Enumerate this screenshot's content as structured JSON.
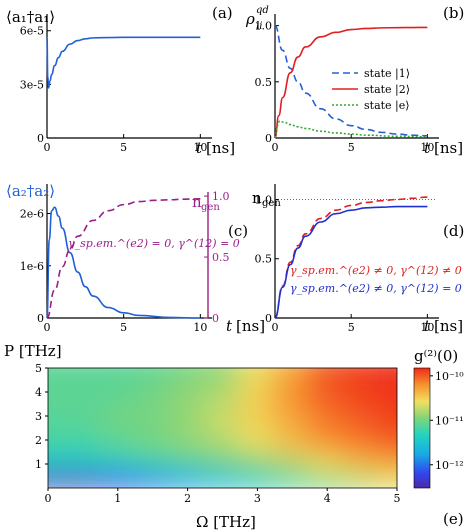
{
  "chart_data": [
    {
      "panel": "(a)",
      "type": "line",
      "ylabel": "⟨a₁†a₁⟩",
      "xlabel": "t [ns]",
      "xlim": [
        0,
        10.5
      ],
      "ylim": [
        0,
        6.6e-05
      ],
      "xticks": [
        0,
        5,
        10
      ],
      "yticks": [
        0,
        3e-05,
        6e-05
      ],
      "ytick_labels": [
        "0",
        "3e-5",
        "6e-5"
      ],
      "series": [
        {
          "color": "#2060d8",
          "style": "solid",
          "x": [
            0,
            0.05,
            0.1,
            0.2,
            0.3,
            0.5,
            0.75,
            1,
            1.5,
            2,
            2.5,
            3,
            4,
            5,
            6,
            8,
            10
          ],
          "y": [
            5.6e-05,
            3.4e-05,
            2.8e-05,
            3.2e-05,
            3.55e-05,
            4.05e-05,
            4.5e-05,
            4.85e-05,
            5.25e-05,
            5.45e-05,
            5.55e-05,
            5.6e-05,
            5.62e-05,
            5.63e-05,
            5.63e-05,
            5.63e-05,
            5.63e-05
          ]
        }
      ]
    },
    {
      "panel": "(b)",
      "type": "line",
      "ylabel": "ρ_ii^qd",
      "xlabel": "t [ns]",
      "xlim": [
        0,
        10.5
      ],
      "ylim": [
        0,
        1.05
      ],
      "xticks": [
        0,
        5,
        10
      ],
      "yticks": [
        0,
        0.5,
        1.0
      ],
      "ytick_labels": [
        "0",
        "0.5",
        "1.0"
      ],
      "legend_position": "center-right",
      "series": [
        {
          "name": "state |1⟩",
          "color": "#2060d8",
          "style": "dashed",
          "x": [
            0,
            0.5,
            1,
            1.5,
            2,
            3,
            4,
            5,
            6,
            7,
            8,
            9,
            10
          ],
          "y": [
            1.0,
            0.78,
            0.62,
            0.5,
            0.4,
            0.26,
            0.17,
            0.11,
            0.075,
            0.05,
            0.035,
            0.025,
            0.02
          ]
        },
        {
          "name": "state |2⟩",
          "color": "#e02020",
          "style": "solid",
          "x": [
            0,
            0.25,
            0.5,
            1,
            1.5,
            2,
            3,
            4,
            5,
            6,
            7,
            8,
            9,
            10
          ],
          "y": [
            0,
            0.2,
            0.36,
            0.58,
            0.72,
            0.81,
            0.9,
            0.94,
            0.965,
            0.975,
            0.98,
            0.982,
            0.983,
            0.984
          ]
        },
        {
          "name": "state |e⟩",
          "color": "#33aa33",
          "style": "dotted",
          "x": [
            0,
            0.15,
            0.3,
            0.6,
            1,
            1.5,
            2,
            3,
            4,
            5,
            6,
            8,
            10
          ],
          "y": [
            0,
            0.11,
            0.15,
            0.14,
            0.12,
            0.1,
            0.085,
            0.06,
            0.045,
            0.035,
            0.025,
            0.015,
            0.01
          ]
        }
      ]
    },
    {
      "panel": "(c)",
      "type": "line",
      "ylabel": "⟨a₂†a₂⟩",
      "ylabel_right": "n_gen",
      "xlabel": "t [ns]",
      "xlim": [
        0,
        10.5
      ],
      "ylim": [
        0,
        2.45e-06
      ],
      "ylim_right": [
        0,
        1.05
      ],
      "xticks": [
        0,
        5,
        10
      ],
      "yticks": [
        0,
        1e-06,
        2e-06
      ],
      "ytick_labels": [
        "0",
        "1e-6",
        "2e-6"
      ],
      "yticks_right": [
        0,
        0.5,
        1.0
      ],
      "ytick_labels_right": [
        "0",
        "0.5",
        "1.0"
      ],
      "annotation": "γ_sp.em.^(e2) = 0, γ^(12) = 0",
      "series": [
        {
          "axis": "left",
          "color": "#2060d8",
          "style": "solid",
          "x": [
            0,
            0.15,
            0.3,
            0.5,
            0.75,
            1,
            1.5,
            2,
            2.5,
            3,
            4,
            5,
            6,
            8,
            10
          ],
          "y": [
            0,
            1.5e-06,
            2.05e-06,
            2.12e-06,
            1.95e-06,
            1.72e-06,
            1.25e-06,
            8.8e-07,
            6e-07,
            4.2e-07,
            2e-07,
            1e-07,
            5e-08,
            1e-08,
            0
          ]
        },
        {
          "axis": "right",
          "color": "#9a1f8c",
          "style": "dashed",
          "x": [
            0,
            0.5,
            1,
            1.5,
            2,
            3,
            4,
            5,
            6,
            7,
            8,
            9,
            10
          ],
          "y": [
            0,
            0.23,
            0.42,
            0.56,
            0.67,
            0.8,
            0.88,
            0.93,
            0.955,
            0.965,
            0.97,
            0.975,
            0.978
          ]
        }
      ]
    },
    {
      "panel": "(d)",
      "type": "line",
      "ylabel": "n_gen",
      "xlabel": "t [ns]",
      "xlim": [
        0,
        10.5
      ],
      "ylim": [
        0,
        1.08
      ],
      "xticks": [
        0,
        5,
        10
      ],
      "yticks": [
        0,
        0.5,
        1.0
      ],
      "ytick_labels": [
        "0",
        "0.5",
        "1.0"
      ],
      "reference_line": 1.0,
      "series": [
        {
          "name": "γ_sp.em.^(e2) ≠ 0, γ^(12) ≠ 0",
          "color": "#e02020",
          "style": "dashed",
          "x": [
            0,
            0.5,
            1,
            1.5,
            2,
            3,
            4,
            5,
            6,
            7,
            8,
            9,
            10
          ],
          "y": [
            0,
            0.27,
            0.47,
            0.61,
            0.71,
            0.84,
            0.91,
            0.95,
            0.975,
            0.99,
            1.0,
            1.01,
            1.02
          ]
        },
        {
          "name": "γ_sp.em.^(e2) ≠ 0, γ^(12) = 0",
          "color": "#2030d0",
          "style": "solid",
          "x": [
            0,
            0.5,
            1,
            1.5,
            2,
            3,
            4,
            5,
            6,
            7,
            8,
            9,
            10
          ],
          "y": [
            0,
            0.26,
            0.45,
            0.59,
            0.69,
            0.81,
            0.88,
            0.91,
            0.93,
            0.935,
            0.94,
            0.94,
            0.94
          ]
        }
      ]
    },
    {
      "panel": "(e)",
      "type": "heatmap",
      "xlabel": "Ω [THz]",
      "ylabel": "P [THz]",
      "colorbar_label": "g⁽²⁾(0)",
      "colorbar_scale": "log",
      "colorbar_range": [
        3e-13,
        1.5e-10
      ],
      "colorbar_ticks": [
        "10⁻¹⁰",
        "10⁻¹¹",
        "10⁻¹²"
      ],
      "xlim": [
        0,
        5
      ],
      "ylim": [
        0,
        5
      ],
      "xticks": [
        0,
        1,
        2,
        3,
        4,
        5
      ],
      "yticks": [
        1,
        2,
        3,
        4,
        5
      ],
      "y_grid": [
        0.4,
        1,
        2,
        3,
        4,
        5
      ],
      "x_grid": [
        0,
        0.5,
        1,
        1.5,
        2,
        2.5,
        3,
        3.5,
        4,
        4.5,
        5
      ],
      "z_log10": [
        [
          -12.4,
          -12.4,
          -12.2,
          -12.0,
          -11.8,
          -11.6,
          -11.4,
          -11.2,
          -11.0,
          -10.8,
          -10.6
        ],
        [
          -11.5,
          -11.5,
          -11.4,
          -11.3,
          -11.2,
          -11.1,
          -11.0,
          -10.8,
          -10.6,
          -10.4,
          -10.3
        ],
        [
          -11.2,
          -11.2,
          -11.1,
          -11.0,
          -10.9,
          -10.8,
          -10.6,
          -10.4,
          -10.2,
          -10.1,
          -10.0
        ],
        [
          -11.1,
          -11.1,
          -11.0,
          -11.0,
          -10.9,
          -10.7,
          -10.5,
          -10.3,
          -10.1,
          -10.0,
          -9.9
        ],
        [
          -11.1,
          -11.1,
          -11.1,
          -11.0,
          -10.9,
          -10.8,
          -10.5,
          -10.2,
          -10.0,
          -9.9,
          -9.85
        ],
        [
          -11.1,
          -11.1,
          -11.1,
          -11.1,
          -11.0,
          -10.9,
          -10.6,
          -10.3,
          -10.0,
          -9.9,
          -9.85
        ]
      ]
    }
  ],
  "panel_labels": [
    "(a)",
    "(b)",
    "(c)",
    "(d)",
    "(e)"
  ],
  "axis_unit_t": "[ns]",
  "axis_unit_thz": "[THz]",
  "colors": {
    "blue": "#2060d8",
    "red": "#e02020",
    "green": "#33aa33",
    "purple": "#9a1f8c",
    "navy": "#2030d0"
  }
}
